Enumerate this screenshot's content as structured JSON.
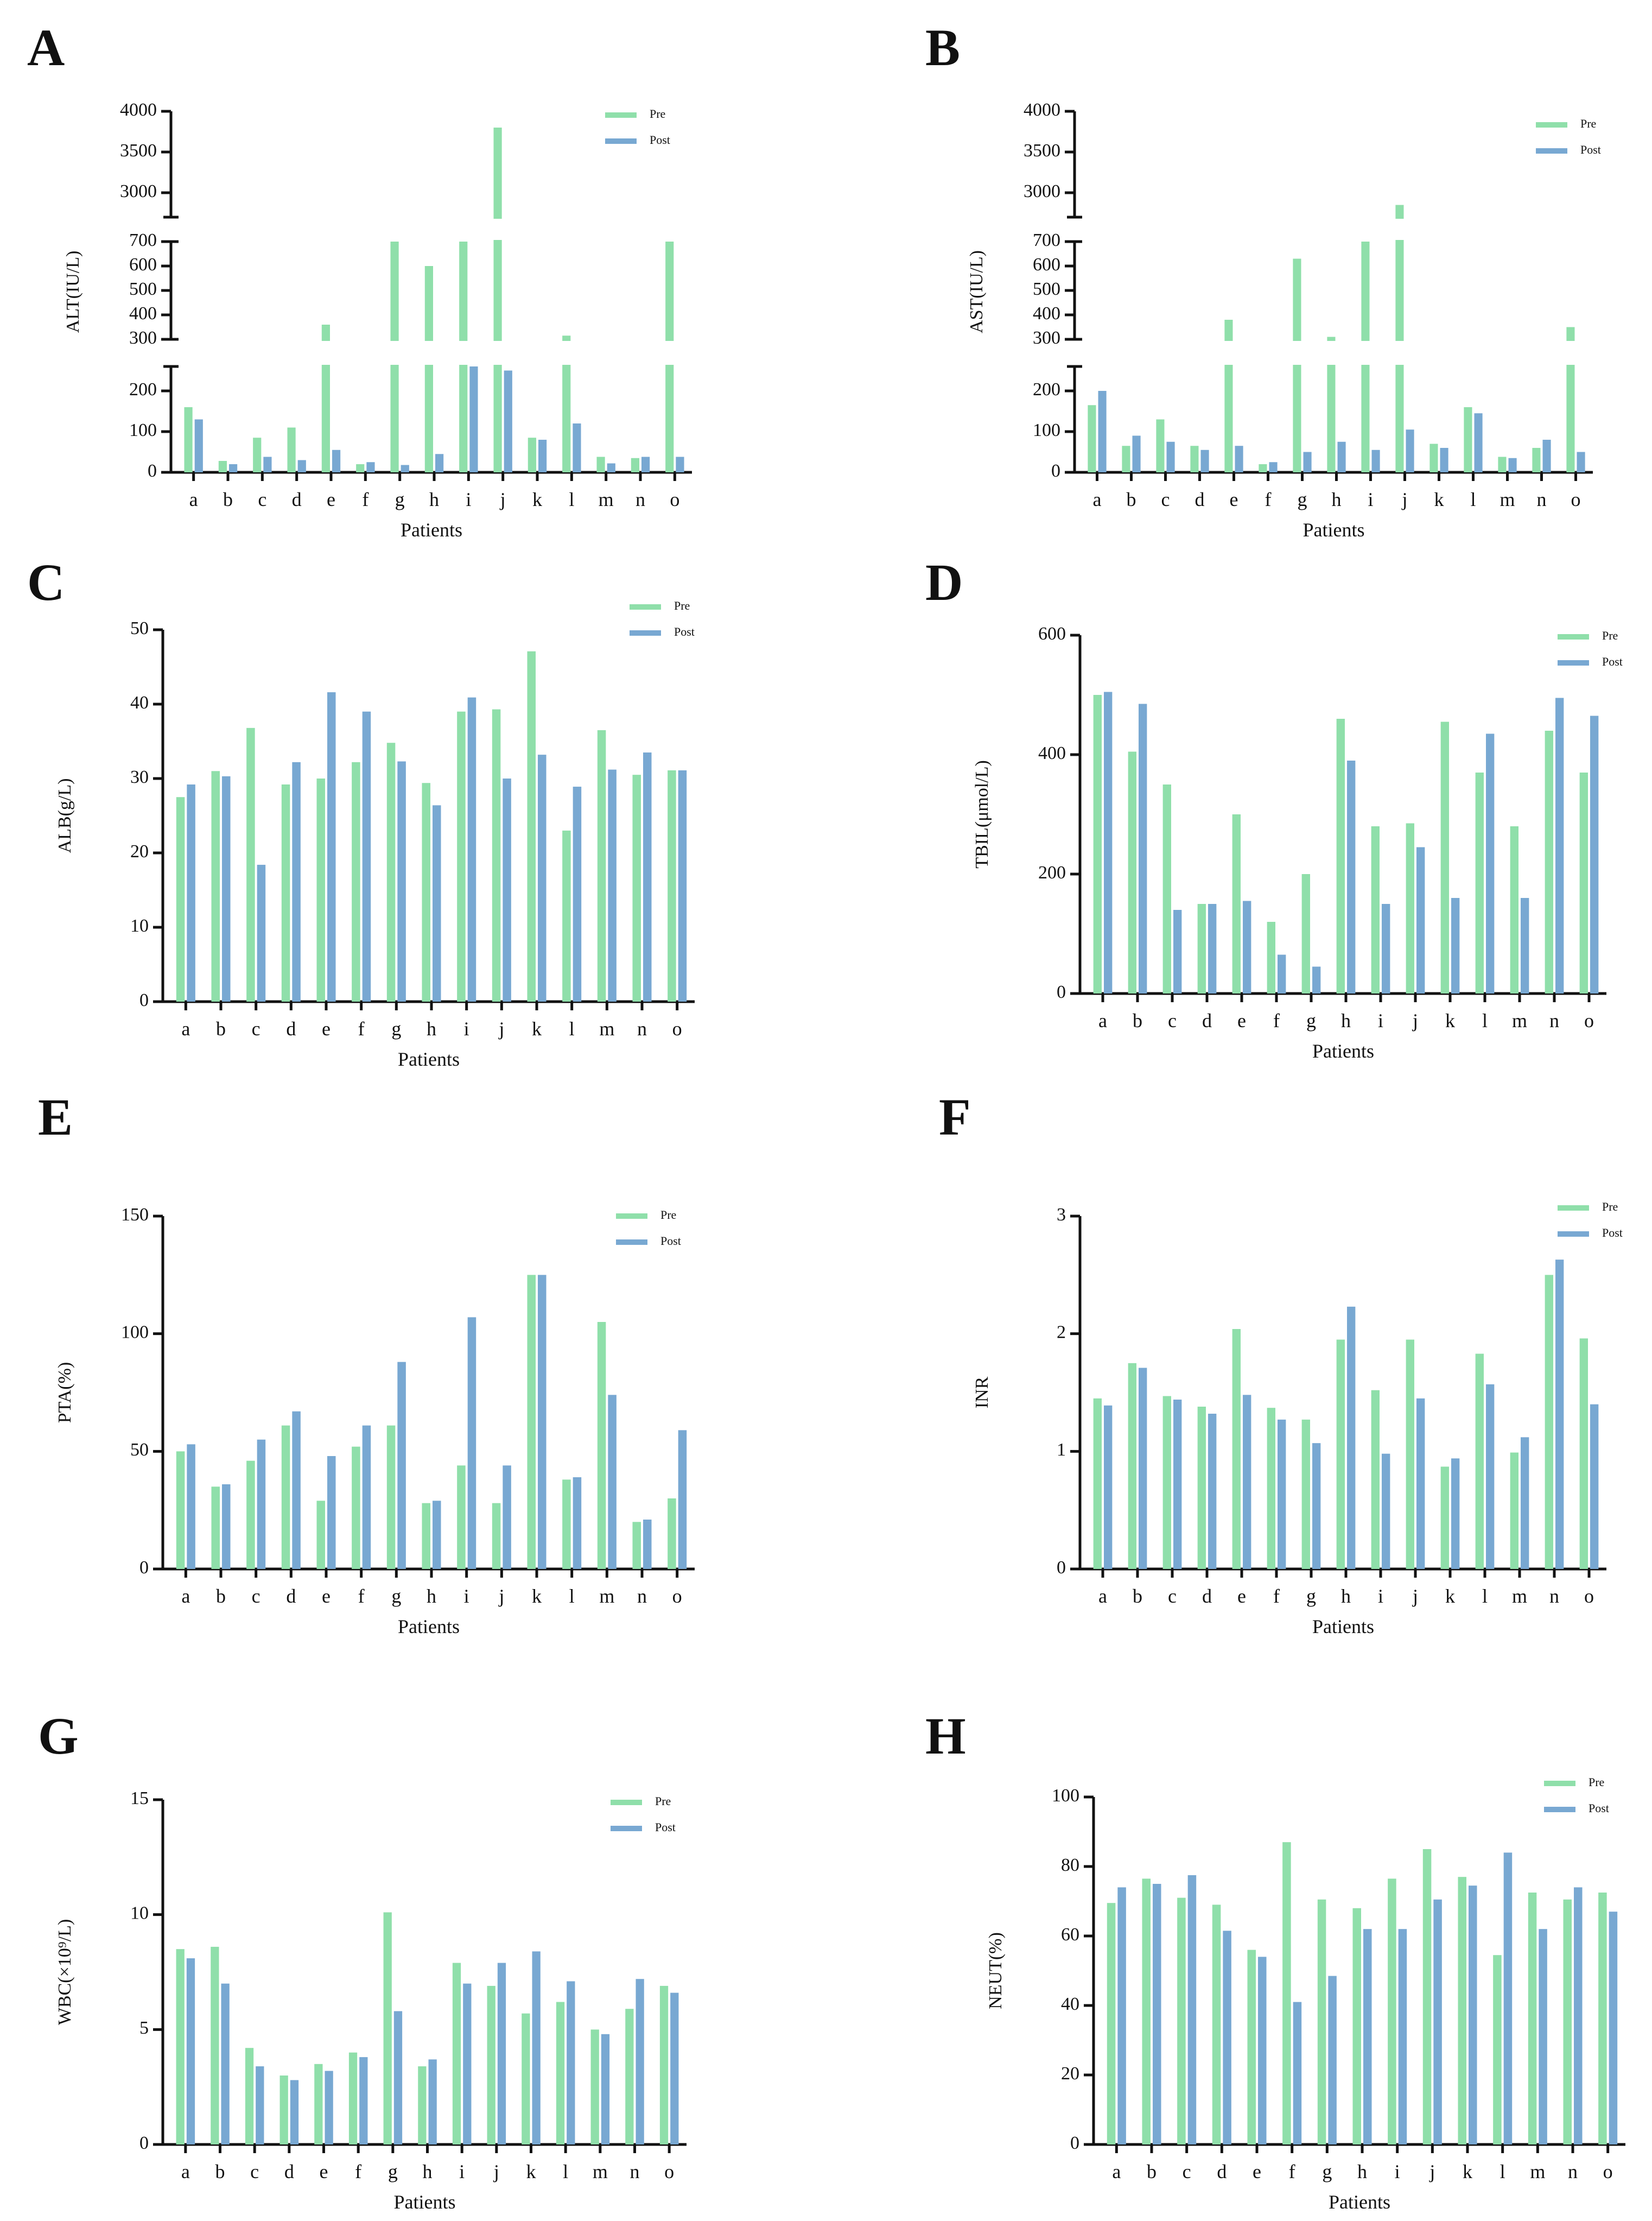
{
  "colors": {
    "pre": "#8fdfaa",
    "post": "#78a8d2"
  },
  "chart_data": [
    {
      "panel": "A",
      "type": "bar",
      "legend": [
        "Pre",
        "Post"
      ],
      "legend_position": "top-right",
      "xlabel": "Patients",
      "ylabel": "ALT(IU/L)",
      "categories": [
        "a",
        "b",
        "c",
        "d",
        "e",
        "f",
        "g",
        "h",
        "i",
        "j",
        "k",
        "l",
        "m",
        "n",
        "o"
      ],
      "y_segments": [
        {
          "range": [
            0,
            260
          ],
          "ticks": [
            0,
            100,
            200
          ]
        },
        {
          "range": [
            300,
            700
          ],
          "ticks": [
            300,
            400,
            500,
            600,
            700
          ]
        },
        {
          "range": [
            2700,
            4000
          ],
          "ticks": [
            3000,
            3500,
            4000
          ]
        }
      ],
      "series": [
        {
          "name": "Pre",
          "values": [
            160,
            28,
            85,
            110,
            360,
            20,
            700,
            600,
            700,
            3800,
            85,
            315,
            38,
            35,
            700
          ]
        },
        {
          "name": "Post",
          "values": [
            130,
            20,
            38,
            30,
            55,
            25,
            18,
            45,
            260,
            250,
            80,
            120,
            22,
            38,
            38
          ]
        }
      ]
    },
    {
      "panel": "B",
      "type": "bar",
      "legend": [
        "Pre",
        "Post"
      ],
      "legend_position": "top-right",
      "xlabel": "Patients",
      "ylabel": "AST(IU/L)",
      "categories": [
        "a",
        "b",
        "c",
        "d",
        "e",
        "f",
        "g",
        "h",
        "i",
        "j",
        "k",
        "l",
        "m",
        "n",
        "o"
      ],
      "y_segments": [
        {
          "range": [
            0,
            260
          ],
          "ticks": [
            0,
            100,
            200
          ]
        },
        {
          "range": [
            300,
            700
          ],
          "ticks": [
            300,
            400,
            500,
            600,
            700
          ]
        },
        {
          "range": [
            2700,
            4000
          ],
          "ticks": [
            3000,
            3500,
            4000
          ]
        }
      ],
      "series": [
        {
          "name": "Pre",
          "values": [
            165,
            65,
            130,
            65,
            380,
            20,
            630,
            310,
            700,
            2850,
            70,
            160,
            38,
            60,
            350
          ]
        },
        {
          "name": "Post",
          "values": [
            200,
            90,
            75,
            55,
            65,
            25,
            50,
            75,
            55,
            105,
            60,
            145,
            35,
            80,
            50
          ]
        }
      ]
    },
    {
      "panel": "C",
      "type": "bar",
      "legend": [
        "Pre",
        "Post"
      ],
      "legend_position": "top-right",
      "xlabel": "Patients",
      "ylabel": "ALB(g/L)",
      "categories": [
        "a",
        "b",
        "c",
        "d",
        "e",
        "f",
        "g",
        "h",
        "i",
        "j",
        "k",
        "l",
        "m",
        "n",
        "o"
      ],
      "y_segments": [
        {
          "range": [
            0,
            50
          ],
          "ticks": [
            0,
            10,
            20,
            30,
            40,
            50
          ]
        }
      ],
      "series": [
        {
          "name": "Pre",
          "values": [
            27.5,
            31,
            36.8,
            29.2,
            30,
            32.2,
            34.8,
            29.4,
            39,
            39.3,
            47.1,
            23,
            36.5,
            30.5,
            31.1
          ]
        },
        {
          "name": "Post",
          "values": [
            29.2,
            30.3,
            18.4,
            32.2,
            41.6,
            39,
            32.3,
            26.4,
            40.9,
            30,
            33.2,
            28.9,
            31.2,
            33.5,
            31.1
          ]
        }
      ]
    },
    {
      "panel": "D",
      "type": "bar",
      "legend": [
        "Pre",
        "Post"
      ],
      "legend_position": "top-right",
      "xlabel": "Patients",
      "ylabel": "TBIL(μmol/L)",
      "categories": [
        "a",
        "b",
        "c",
        "d",
        "e",
        "f",
        "g",
        "h",
        "i",
        "j",
        "k",
        "l",
        "m",
        "n",
        "o"
      ],
      "y_segments": [
        {
          "range": [
            0,
            600
          ],
          "ticks": [
            0,
            200,
            400,
            600
          ]
        }
      ],
      "series": [
        {
          "name": "Pre",
          "values": [
            500,
            405,
            350,
            150,
            300,
            120,
            200,
            460,
            280,
            285,
            455,
            370,
            280,
            440,
            370
          ]
        },
        {
          "name": "Post",
          "values": [
            505,
            485,
            140,
            150,
            155,
            65,
            45,
            390,
            150,
            245,
            160,
            435,
            160,
            495,
            465
          ]
        }
      ]
    },
    {
      "panel": "E",
      "type": "bar",
      "legend": [
        "Pre",
        "Post"
      ],
      "legend_position": "top-right",
      "xlabel": "Patients",
      "ylabel": "PTA(%)",
      "categories": [
        "a",
        "b",
        "c",
        "d",
        "e",
        "f",
        "g",
        "h",
        "i",
        "j",
        "k",
        "l",
        "m",
        "n",
        "o"
      ],
      "y_segments": [
        {
          "range": [
            0,
            150
          ],
          "ticks": [
            0,
            50,
            100,
            150
          ]
        }
      ],
      "series": [
        {
          "name": "Pre",
          "values": [
            50,
            35,
            46,
            61,
            29,
            52,
            61,
            28,
            44,
            28,
            125,
            38,
            105,
            20,
            30
          ]
        },
        {
          "name": "Post",
          "values": [
            53,
            36,
            55,
            67,
            48,
            61,
            88,
            29,
            107,
            44,
            125,
            39,
            74,
            21,
            59
          ]
        }
      ]
    },
    {
      "panel": "F",
      "type": "bar",
      "legend": [
        "Pre",
        "Post"
      ],
      "legend_position": "top-right",
      "xlabel": "Patients",
      "ylabel": "INR",
      "categories": [
        "a",
        "b",
        "c",
        "d",
        "e",
        "f",
        "g",
        "h",
        "i",
        "j",
        "k",
        "l",
        "m",
        "n",
        "o"
      ],
      "y_segments": [
        {
          "range": [
            0,
            3
          ],
          "ticks": [
            0,
            1,
            2,
            3
          ]
        }
      ],
      "series": [
        {
          "name": "Pre",
          "values": [
            1.45,
            1.75,
            1.47,
            1.38,
            2.04,
            1.37,
            1.27,
            1.95,
            1.52,
            1.95,
            0.87,
            1.83,
            0.99,
            2.5,
            1.96
          ]
        },
        {
          "name": "Post",
          "values": [
            1.39,
            1.71,
            1.44,
            1.32,
            1.48,
            1.27,
            1.07,
            2.23,
            0.98,
            1.45,
            0.94,
            1.57,
            1.12,
            2.63,
            1.4
          ]
        }
      ]
    },
    {
      "panel": "G",
      "type": "bar",
      "legend": [
        "Pre",
        "Post"
      ],
      "legend_position": "top-right",
      "xlabel": "Patients",
      "ylabel": "WBC(×10⁹/L)",
      "categories": [
        "a",
        "b",
        "c",
        "d",
        "e",
        "f",
        "g",
        "h",
        "i",
        "j",
        "k",
        "l",
        "m",
        "n",
        "o"
      ],
      "y_segments": [
        {
          "range": [
            0,
            15
          ],
          "ticks": [
            0,
            5,
            10,
            15
          ]
        }
      ],
      "series": [
        {
          "name": "Pre",
          "values": [
            8.5,
            8.6,
            4.2,
            3,
            3.5,
            4.0,
            10.1,
            3.4,
            7.9,
            6.9,
            5.7,
            6.2,
            5,
            5.9,
            6.9
          ]
        },
        {
          "name": "Post",
          "values": [
            8.1,
            7,
            3.4,
            2.8,
            3.2,
            3.8,
            5.8,
            3.7,
            7,
            7.9,
            8.4,
            7.1,
            4.8,
            7.2,
            6.6
          ]
        }
      ]
    },
    {
      "panel": "H",
      "type": "bar",
      "legend": [
        "Pre",
        "Post"
      ],
      "legend_position": "top-right",
      "xlabel": "Patients",
      "ylabel": "NEUT(%)",
      "categories": [
        "a",
        "b",
        "c",
        "d",
        "e",
        "f",
        "g",
        "h",
        "i",
        "j",
        "k",
        "l",
        "m",
        "n",
        "o"
      ],
      "y_segments": [
        {
          "range": [
            0,
            100
          ],
          "ticks": [
            0,
            20,
            40,
            60,
            80,
            100
          ]
        }
      ],
      "series": [
        {
          "name": "Pre",
          "values": [
            69.5,
            76.5,
            71,
            69,
            56,
            87,
            70.5,
            68,
            76.5,
            85,
            77,
            54.5,
            72.5,
            70.5,
            72.5
          ]
        },
        {
          "name": "Post",
          "values": [
            74,
            75,
            77.5,
            61.5,
            54,
            41,
            48.5,
            62,
            62,
            70.5,
            74.5,
            84,
            62,
            74,
            67
          ]
        }
      ]
    }
  ]
}
